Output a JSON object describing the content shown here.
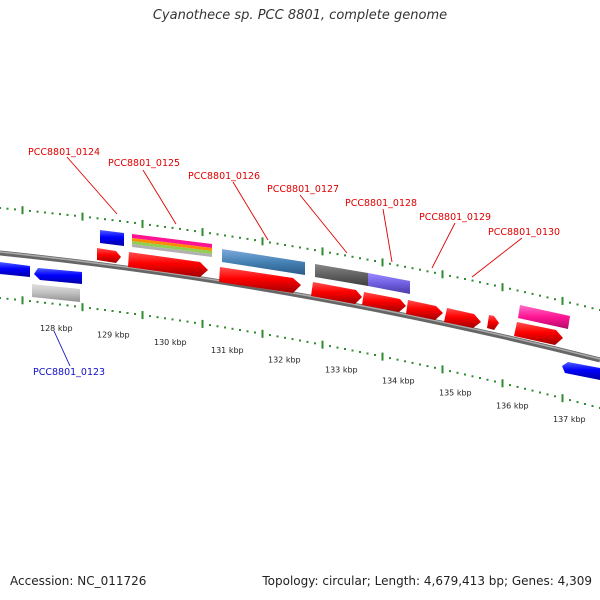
{
  "title": "Cyanothece sp. PCC 8801, complete genome",
  "footer": {
    "accession": "Accession: NC_011726",
    "summary": "Topology: circular; Length: 4,679,413 bp; Genes: 4,309"
  },
  "gene_labels": [
    {
      "id": "PCC8801_0124",
      "color": "#e00000"
    },
    {
      "id": "PCC8801_0125",
      "color": "#e00000"
    },
    {
      "id": "PCC8801_0126",
      "color": "#e00000"
    },
    {
      "id": "PCC8801_0127",
      "color": "#e00000"
    },
    {
      "id": "PCC8801_0128",
      "color": "#e00000"
    },
    {
      "id": "PCC8801_0129",
      "color": "#e00000"
    },
    {
      "id": "PCC8801_0130",
      "color": "#e00000"
    },
    {
      "id": "PCC8801_0123",
      "color": "#1010c0"
    }
  ],
  "kbp_ticks": [
    "128 kbp",
    "129 kbp",
    "130 kbp",
    "131 kbp",
    "132 kbp",
    "133 kbp",
    "134 kbp",
    "135 kbp",
    "136 kbp",
    "137 kbp"
  ],
  "colors": {
    "forward_gene": "#ff0000",
    "reverse_gene": "#0000ff",
    "backbone": "#888888",
    "tick": "#2e8b2e",
    "label_red": "#e00000",
    "label_blue": "#1010c0"
  }
}
